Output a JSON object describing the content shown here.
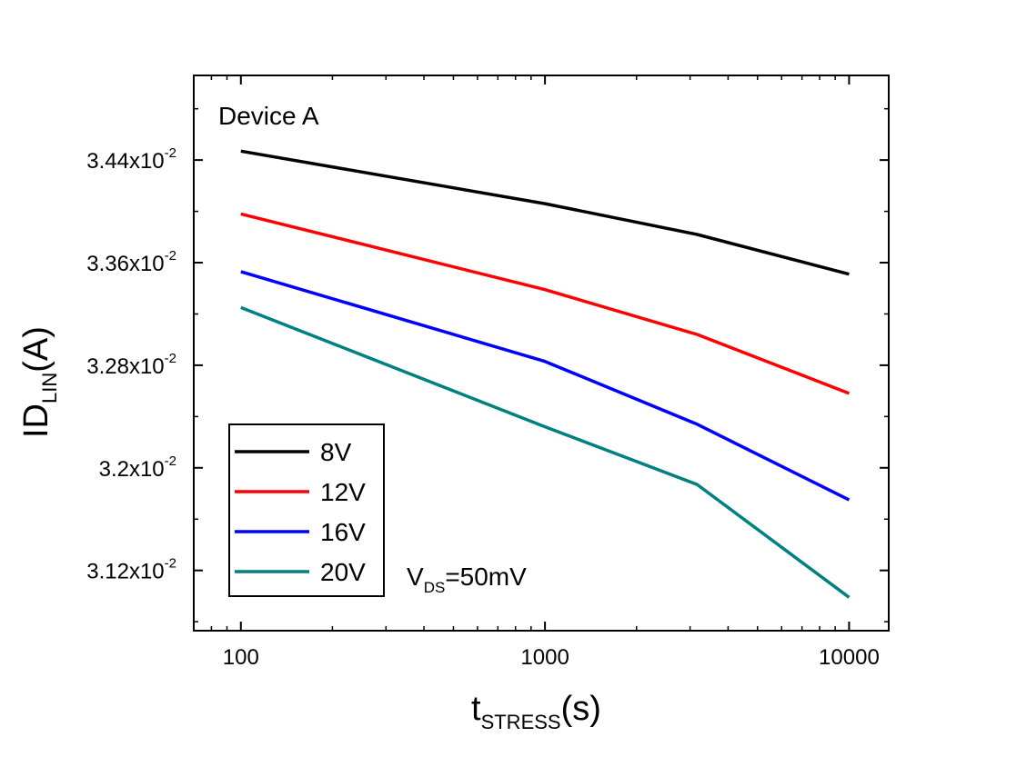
{
  "chart_data": {
    "type": "line",
    "x_scale": "log",
    "x": [
      100,
      1000,
      3162,
      10000
    ],
    "series": [
      {
        "name": "8V",
        "color": "#000000",
        "values": [
          0.03447,
          0.03406,
          0.03382,
          0.03351
        ]
      },
      {
        "name": "12V",
        "color": "#ff0000",
        "values": [
          0.03398,
          0.03339,
          0.03304,
          0.03258
        ]
      },
      {
        "name": "16V",
        "color": "#0000ff",
        "values": [
          0.03353,
          0.03283,
          0.03234,
          0.03175
        ]
      },
      {
        "name": "20V",
        "color": "#008080",
        "values": [
          0.03325,
          0.03232,
          0.03187,
          0.03099
        ]
      }
    ],
    "xlim": [
      70,
      13500
    ],
    "ylim": [
      0.03073,
      0.03506
    ],
    "x_ticks": [
      {
        "value": 100,
        "label": "100"
      },
      {
        "value": 1000,
        "label": "1000"
      },
      {
        "value": 10000,
        "label": "10000"
      }
    ],
    "y_ticks": [
      {
        "value": 0.0312,
        "mantissa": "3.12x10",
        "exponent": "-2"
      },
      {
        "value": 0.032,
        "mantissa": "3.2x10",
        "exponent": "-2"
      },
      {
        "value": 0.0328,
        "mantissa": "3.28x10",
        "exponent": "-2"
      },
      {
        "value": 0.0336,
        "mantissa": "3.36x10",
        "exponent": "-2"
      },
      {
        "value": 0.0344,
        "mantissa": "3.44x10",
        "exponent": "-2"
      }
    ],
    "xlabel": {
      "main": "t",
      "sub": "STRESS",
      "unit": "(s)"
    },
    "ylabel": {
      "main": "ID",
      "sub": "LIN",
      "unit": "(A)"
    },
    "title": "Device A",
    "annotation": {
      "main": "V",
      "sub": "DS",
      "rest": "=50mV"
    },
    "legend_position": "bottom-left",
    "grid": false
  }
}
